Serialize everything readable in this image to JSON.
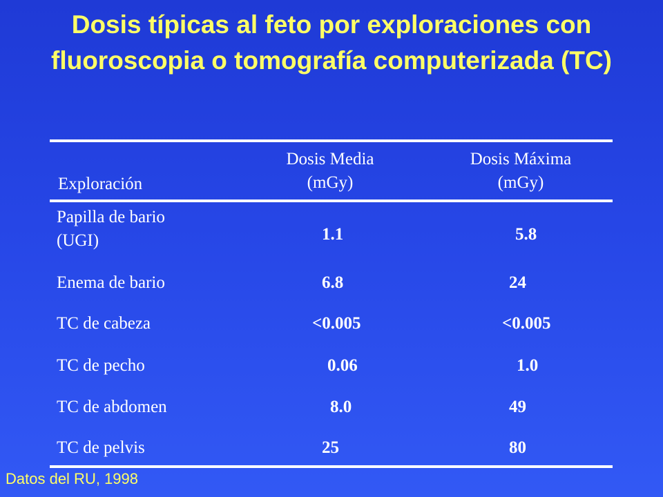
{
  "title": "Dosis típicas al feto por exploraciones con fluoroscopia o tomografía computerizada (TC)",
  "table": {
    "headers": {
      "exploracion": "Exploración",
      "media_line1": "Dosis Media",
      "media_line2": "(mGy)",
      "maxima_line1": "Dosis Máxima",
      "maxima_line2": "(mGy)"
    },
    "rows": [
      {
        "label_line1": "Papilla de bario",
        "label_line2": "(UGI)",
        "media": "1.1",
        "maxima": "5.8"
      },
      {
        "label": "Enema de bario",
        "media": "6.8",
        "maxima": "24"
      },
      {
        "label": "TC de cabeza",
        "media": "<0.005",
        "maxima": "<0.005"
      },
      {
        "label": "TC de pecho",
        "media": "0.06",
        "maxima": "1.0"
      },
      {
        "label": "TC de abdomen",
        "media": "8.0",
        "maxima": "49"
      },
      {
        "label": "TC de pelvis",
        "media": "25",
        "maxima": "80"
      }
    ]
  },
  "footnote": "Datos del RU, 1998",
  "colors": {
    "title": "#ffff66",
    "background_top": "#1f3ad6",
    "background_bottom": "#3259f5",
    "text": "#ffffff"
  }
}
